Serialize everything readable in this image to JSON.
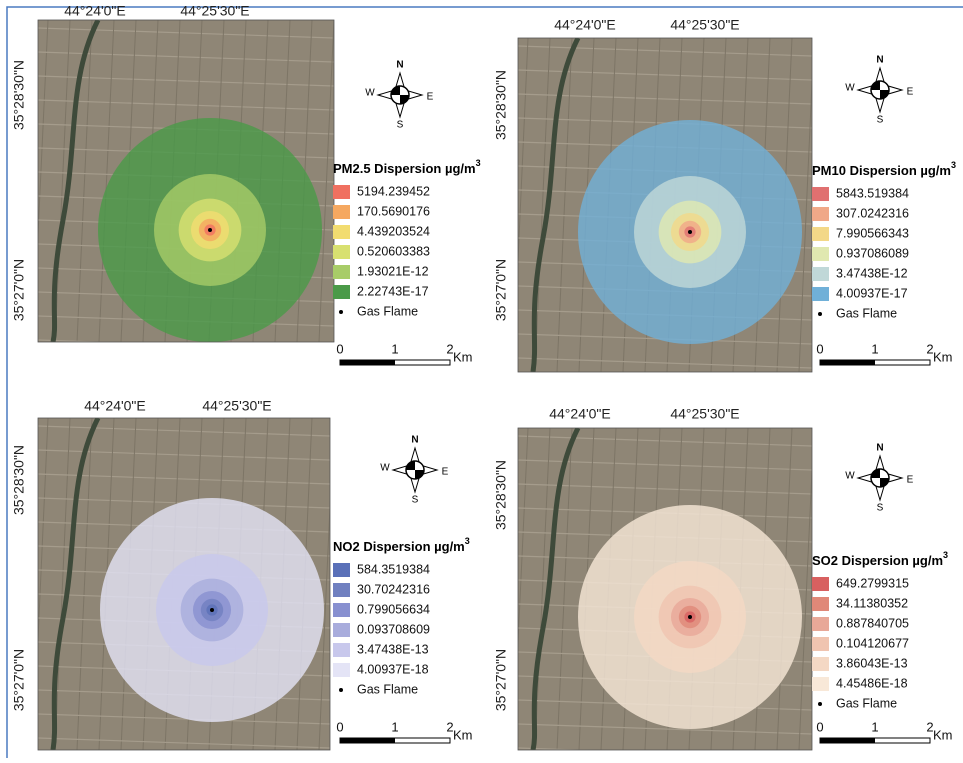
{
  "panels": [
    {
      "lon_labels": [
        "44°24'0\"E",
        "44°25'30\"E"
      ],
      "lat_labels": [
        "35°28'30\"N",
        "35°27'0\"N"
      ],
      "compass": {
        "n": "N",
        "s": "S",
        "e": "E",
        "w": "W"
      },
      "legend": {
        "title": "PM2.5 Dispersion µg/m",
        "title_sup": "3",
        "items": [
          {
            "label": "5194.239452",
            "color": "#f07060"
          },
          {
            "label": "170.5690176",
            "color": "#f5a860"
          },
          {
            "label": "4.439203524",
            "color": "#f2dc70"
          },
          {
            "label": "0.520603383",
            "color": "#d8e070"
          },
          {
            "label": "1.93021E-12",
            "color": "#a8cc68"
          },
          {
            "label": "2.22743E-17",
            "color": "#4a9a48"
          }
        ],
        "point_label": "Gas Flame"
      },
      "scale": {
        "ticks": [
          "0",
          "1",
          "2"
        ],
        "unit": "Km"
      }
    },
    {
      "lon_labels": [
        "44°24'0\"E",
        "44°25'30\"E"
      ],
      "lat_labels": [
        "35°28'30\"N",
        "35°27'0\"N"
      ],
      "compass": {
        "n": "N",
        "s": "S",
        "e": "E",
        "w": "W"
      },
      "legend": {
        "title": "PM10 Dispersion µg/m",
        "title_sup": "3",
        "items": [
          {
            "label": "5843.519384",
            "color": "#e07070"
          },
          {
            "label": "307.0242316",
            "color": "#f0a888"
          },
          {
            "label": "7.990566343",
            "color": "#f3d888"
          },
          {
            "label": "0.937086089",
            "color": "#e0e8b0"
          },
          {
            "label": "3.47438E-12",
            "color": "#c0d8d8"
          },
          {
            "label": "4.00937E-17",
            "color": "#70b0d8"
          }
        ],
        "point_label": "Gas Flame"
      },
      "scale": {
        "ticks": [
          "0",
          "1",
          "2"
        ],
        "unit": "Km"
      }
    },
    {
      "lon_labels": [
        "44°24'0\"E",
        "44°25'30\"E"
      ],
      "lat_labels": [
        "35°28'30\"N",
        "35°27'0\"N"
      ],
      "compass": {
        "n": "N",
        "s": "S",
        "e": "E",
        "w": "W"
      },
      "legend": {
        "title": "NO2 Dispersion µg/m",
        "title_sup": "3",
        "items": [
          {
            "label": "584.3519384",
            "color": "#5a70b8"
          },
          {
            "label": "30.70242316",
            "color": "#7080c0"
          },
          {
            "label": "0.799056634",
            "color": "#8890d0"
          },
          {
            "label": "0.093708609",
            "color": "#a8acdc"
          },
          {
            "label": "3.47438E-13",
            "color": "#c8c8ec"
          },
          {
            "label": "4.00937E-18",
            "color": "#e4e4f6"
          }
        ],
        "point_label": "Gas Flame"
      },
      "scale": {
        "ticks": [
          "0",
          "1",
          "2"
        ],
        "unit": "Km"
      }
    },
    {
      "lon_labels": [
        "44°24'0\"E",
        "44°25'30\"E"
      ],
      "lat_labels": [
        "35°28'30\"N",
        "35°27'0\"N"
      ],
      "compass": {
        "n": "N",
        "s": "S",
        "e": "E",
        "w": "W"
      },
      "legend": {
        "title": "SO2 Dispersion µg/m",
        "title_sup": "3",
        "items": [
          {
            "label": "649.2799315",
            "color": "#d86060"
          },
          {
            "label": "34.11380352",
            "color": "#e08878"
          },
          {
            "label": "0.887840705",
            "color": "#e8a898"
          },
          {
            "label": "0.104120677",
            "color": "#f0c4b0"
          },
          {
            "label": "3.86043E-13",
            "color": "#f4d8c4"
          },
          {
            "label": "4.45486E-18",
            "color": "#f8e8d8"
          }
        ],
        "point_label": "Gas Flame"
      },
      "scale": {
        "ticks": [
          "0",
          "1",
          "2"
        ],
        "unit": "Km"
      }
    }
  ]
}
